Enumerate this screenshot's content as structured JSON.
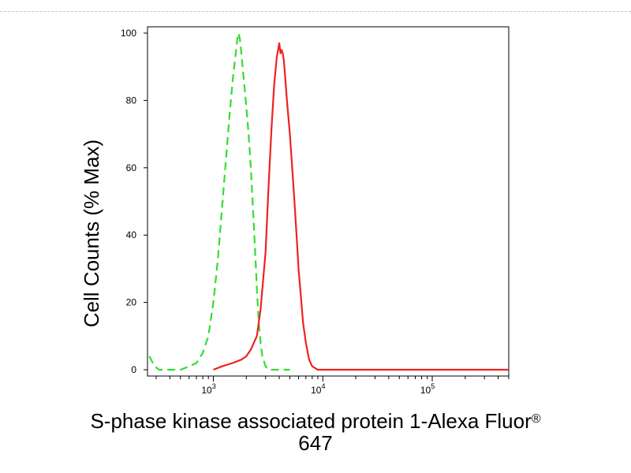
{
  "chart_data": {
    "type": "line",
    "xlabel": "S-phase kinase associated protein 1-Alexa Fluor",
    "xlabel_sup": "®",
    "xlabel_line2": "647",
    "ylabel": "Cell Counts (% Max)",
    "x_scale": "log",
    "xlim": [
      250,
      500000
    ],
    "ylim": [
      0,
      100
    ],
    "y_ticks": [
      0,
      20,
      40,
      60,
      80,
      100
    ],
    "x_major_ticks": [
      {
        "value": 1000,
        "base": "10",
        "exp": "3"
      },
      {
        "value": 10000,
        "base": "10",
        "exp": "4"
      },
      {
        "value": 100000,
        "base": "10",
        "exp": "5"
      }
    ],
    "grid": false,
    "series": [
      {
        "color": "#33dd33",
        "dash": true,
        "x": [
          260,
          270,
          290,
          320,
          350,
          400,
          450,
          500,
          600,
          700,
          800,
          900,
          1000,
          1100,
          1200,
          1300,
          1400,
          1500,
          1600,
          1650,
          1700,
          1750,
          1800,
          1900,
          2000,
          2100,
          2200,
          2300,
          2400,
          2500,
          2600,
          2700,
          2800,
          3000,
          3200,
          3500,
          4000,
          5000
        ],
        "y": [
          4,
          3,
          1,
          0,
          0,
          0,
          0,
          0,
          1,
          2,
          5,
          10,
          20,
          33,
          48,
          62,
          75,
          86,
          94,
          98,
          100,
          98,
          94,
          86,
          78,
          70,
          60,
          48,
          36,
          24,
          14,
          8,
          4,
          1,
          0,
          0,
          0,
          0
        ]
      },
      {
        "color": "#ee2222",
        "dash": false,
        "x": [
          1000,
          1200,
          1500,
          1800,
          2000,
          2200,
          2500,
          2700,
          3000,
          3200,
          3400,
          3600,
          3800,
          4000,
          4100,
          4200,
          4300,
          4400,
          4500,
          4700,
          5000,
          5200,
          5500,
          5800,
          6000,
          6300,
          6600,
          7000,
          7500,
          8000,
          9000,
          10000,
          20000,
          100000,
          500000
        ],
        "y": [
          0,
          1,
          2,
          3,
          4,
          6,
          10,
          18,
          35,
          55,
          72,
          85,
          93,
          97,
          94,
          95,
          94,
          92,
          88,
          80,
          70,
          62,
          50,
          38,
          30,
          22,
          14,
          8,
          3,
          1,
          0,
          0,
          0,
          0,
          0
        ]
      }
    ]
  }
}
